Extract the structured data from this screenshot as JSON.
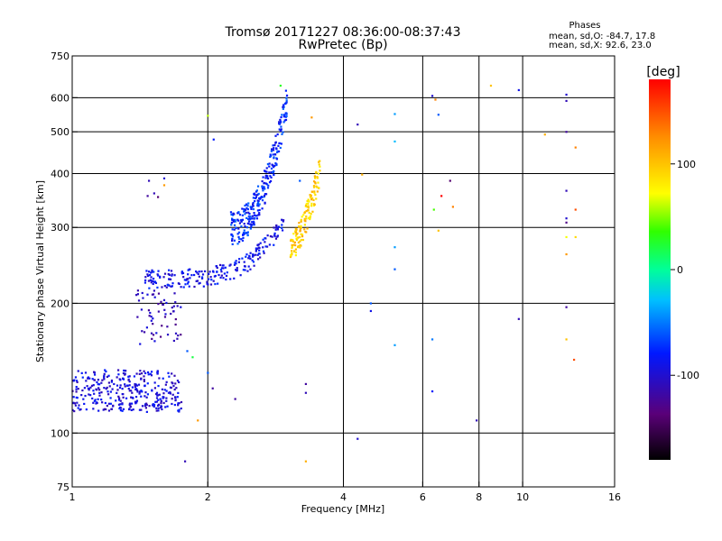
{
  "chart_data": {
    "type": "scatter",
    "title": "Tromsø 20171227 08:36:00-08:37:43",
    "subtitle": "RwPretec (Bp)",
    "stats": {
      "heading": "Phases",
      "line_o": "mean, sd,O: -84.7, 17.8",
      "line_x": "mean, sd,X:  92.6, 23.0"
    },
    "xlabel": "Frequency [MHz]",
    "ylabel": "Stationary phase Virtual Height [km]",
    "x_scale": "log",
    "y_scale": "log",
    "xlim": [
      1,
      16
    ],
    "ylim": [
      75,
      750
    ],
    "x_ticks": [
      1,
      2,
      4,
      6,
      8,
      10,
      16
    ],
    "x_tick_labels": [
      "1",
      "2",
      "4",
      "6",
      "8",
      "10",
      "16"
    ],
    "y_ticks": [
      75,
      100,
      200,
      300,
      400,
      500,
      600,
      750
    ],
    "y_tick_labels": [
      "75",
      "100",
      "200",
      "300",
      "400",
      "500",
      "600",
      "750"
    ],
    "grid": true,
    "colorbar": {
      "label": "[deg]",
      "range": [
        -180,
        180
      ],
      "ticks": [
        100,
        0,
        -100
      ],
      "tick_labels": [
        "100",
        "0",
        "-100"
      ]
    },
    "clusters": [
      {
        "name": "E-region low trace",
        "x_range": [
          1.0,
          1.75
        ],
        "h_range": [
          112,
          140
        ],
        "phase": -95,
        "count": 330
      },
      {
        "name": "F1 blue trace",
        "x_range": [
          1.45,
          2.95
        ],
        "h_range": [
          228,
          310
        ],
        "phase": -90,
        "count": 220
      },
      {
        "name": "F2 O-mode trace",
        "x_range": [
          2.25,
          3.0
        ],
        "h_range": [
          300,
          590
        ],
        "phase": -75,
        "count": 280
      },
      {
        "name": "X-mode yellow trace",
        "x_range": [
          3.05,
          3.55
        ],
        "h_range": [
          272,
          410
        ],
        "phase": 95,
        "count": 140
      },
      {
        "name": "spread 1.4-1.7 MHz",
        "x_range": [
          1.38,
          1.75
        ],
        "h_range": [
          160,
          215
        ],
        "phase": -110,
        "count": 60
      }
    ],
    "points": [
      {
        "x": 6.4,
        "y": 594,
        "phase": 130
      },
      {
        "x": 6.3,
        "y": 606,
        "phase": -100
      },
      {
        "x": 6.5,
        "y": 548,
        "phase": -60
      },
      {
        "x": 6.6,
        "y": 355,
        "phase": 180
      },
      {
        "x": 6.35,
        "y": 330,
        "phase": 40
      },
      {
        "x": 6.5,
        "y": 295,
        "phase": 100
      },
      {
        "x": 6.9,
        "y": 385,
        "phase": -140
      },
      {
        "x": 7.0,
        "y": 335,
        "phase": 130
      },
      {
        "x": 5.2,
        "y": 550,
        "phase": -40
      },
      {
        "x": 5.2,
        "y": 475,
        "phase": -30
      },
      {
        "x": 5.2,
        "y": 270,
        "phase": -40
      },
      {
        "x": 5.2,
        "y": 240,
        "phase": -60
      },
      {
        "x": 5.2,
        "y": 160,
        "phase": -40
      },
      {
        "x": 4.3,
        "y": 520,
        "phase": -110
      },
      {
        "x": 4.4,
        "y": 398,
        "phase": 110
      },
      {
        "x": 4.6,
        "y": 200,
        "phase": -60
      },
      {
        "x": 4.6,
        "y": 192,
        "phase": -90
      },
      {
        "x": 4.3,
        "y": 97,
        "phase": -100
      },
      {
        "x": 6.3,
        "y": 165,
        "phase": -50
      },
      {
        "x": 6.3,
        "y": 125,
        "phase": -80
      },
      {
        "x": 7.9,
        "y": 107,
        "phase": -110
      },
      {
        "x": 8.5,
        "y": 640,
        "phase": 100
      },
      {
        "x": 9.8,
        "y": 625,
        "phase": -90
      },
      {
        "x": 9.8,
        "y": 184,
        "phase": -110
      },
      {
        "x": 11.2,
        "y": 493,
        "phase": 110
      },
      {
        "x": 12.5,
        "y": 610,
        "phase": -100
      },
      {
        "x": 12.5,
        "y": 590,
        "phase": -110
      },
      {
        "x": 12.5,
        "y": 500,
        "phase": -120
      },
      {
        "x": 12.5,
        "y": 365,
        "phase": -110
      },
      {
        "x": 12.5,
        "y": 315,
        "phase": -100
      },
      {
        "x": 12.5,
        "y": 308,
        "phase": -130
      },
      {
        "x": 12.5,
        "y": 285,
        "phase": 70
      },
      {
        "x": 12.5,
        "y": 260,
        "phase": 120
      },
      {
        "x": 12.5,
        "y": 196,
        "phase": -120
      },
      {
        "x": 12.5,
        "y": 165,
        "phase": 100
      },
      {
        "x": 13.1,
        "y": 460,
        "phase": 130
      },
      {
        "x": 13.1,
        "y": 330,
        "phase": 150
      },
      {
        "x": 13.1,
        "y": 285,
        "phase": 90
      },
      {
        "x": 13.0,
        "y": 148,
        "phase": 150
      },
      {
        "x": 3.3,
        "y": 130,
        "phase": -120
      },
      {
        "x": 3.3,
        "y": 124,
        "phase": -110
      },
      {
        "x": 3.3,
        "y": 86,
        "phase": 110
      },
      {
        "x": 3.2,
        "y": 385,
        "phase": -60
      },
      {
        "x": 3.4,
        "y": 540,
        "phase": 120
      },
      {
        "x": 2.0,
        "y": 545,
        "phase": 60
      },
      {
        "x": 2.06,
        "y": 480,
        "phase": -80
      },
      {
        "x": 2.9,
        "y": 640,
        "phase": 30
      },
      {
        "x": 1.78,
        "y": 86,
        "phase": -110
      },
      {
        "x": 1.9,
        "y": 107,
        "phase": 120
      },
      {
        "x": 2.05,
        "y": 127,
        "phase": -120
      },
      {
        "x": 2.0,
        "y": 138,
        "phase": -60
      },
      {
        "x": 2.3,
        "y": 120,
        "phase": -120
      },
      {
        "x": 1.6,
        "y": 390,
        "phase": -100
      },
      {
        "x": 1.6,
        "y": 376,
        "phase": 120
      },
      {
        "x": 1.48,
        "y": 385,
        "phase": -110
      },
      {
        "x": 1.52,
        "y": 360,
        "phase": -110
      },
      {
        "x": 1.55,
        "y": 353,
        "phase": -140
      },
      {
        "x": 1.47,
        "y": 355,
        "phase": -120
      },
      {
        "x": 1.85,
        "y": 150,
        "phase": 20
      },
      {
        "x": 1.8,
        "y": 155,
        "phase": -60
      }
    ]
  }
}
